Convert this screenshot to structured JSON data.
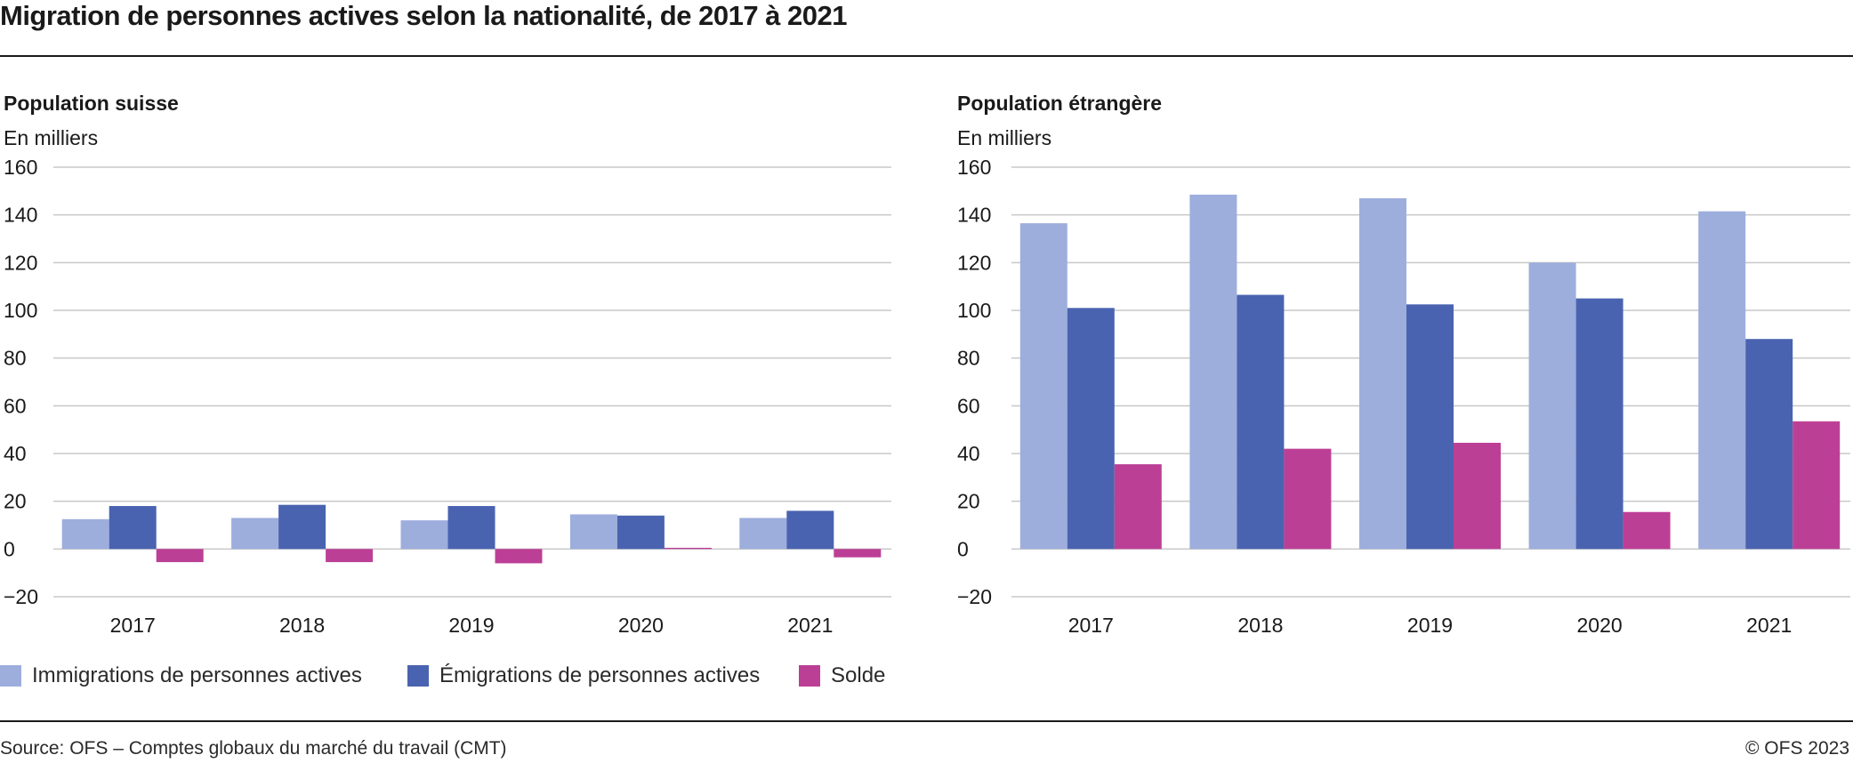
{
  "title": "Migration de personnes actives selon la nationalité, de 2017 à 2021",
  "colors": {
    "immigrations": "#9daedd",
    "emigrations": "#4a63b0",
    "solde": "#bc3f96",
    "grid": "#c8c8c8",
    "text": "#1a1a1a"
  },
  "legend": [
    {
      "key": "immigrations",
      "label": "Immigrations de personnes actives"
    },
    {
      "key": "emigrations",
      "label": "Émigrations de personnes actives"
    },
    {
      "key": "solde",
      "label": "Solde"
    }
  ],
  "chart_data": [
    {
      "type": "bar",
      "title": "Population suisse",
      "ylabel": "En milliers",
      "categories": [
        "2017",
        "2018",
        "2019",
        "2020",
        "2021"
      ],
      "ylim": [
        -20,
        160
      ],
      "yticks": [
        160,
        140,
        120,
        100,
        80,
        60,
        40,
        20,
        0,
        -20
      ],
      "grid": true,
      "series": [
        {
          "name": "Immigrations de personnes actives",
          "color": "#9daedd",
          "values": [
            12.5,
            13,
            12,
            14.5,
            13
          ]
        },
        {
          "name": "Émigrations de personnes actives",
          "color": "#4a63b0",
          "values": [
            18,
            18.5,
            18,
            14,
            16
          ]
        },
        {
          "name": "Solde",
          "color": "#bc3f96",
          "values": [
            -5.5,
            -5.5,
            -6,
            0.5,
            -3.5
          ]
        }
      ]
    },
    {
      "type": "bar",
      "title": "Population étrangère",
      "ylabel": "En milliers",
      "categories": [
        "2017",
        "2018",
        "2019",
        "2020",
        "2021"
      ],
      "ylim": [
        -20,
        160
      ],
      "yticks": [
        160,
        140,
        120,
        100,
        80,
        60,
        40,
        20,
        0,
        -20
      ],
      "grid": true,
      "series": [
        {
          "name": "Immigrations de personnes actives",
          "color": "#9daedd",
          "values": [
            136.5,
            148.5,
            147,
            120,
            141.5
          ]
        },
        {
          "name": "Émigrations de personnes actives",
          "color": "#4a63b0",
          "values": [
            101,
            106.5,
            102.5,
            105,
            88
          ]
        },
        {
          "name": "Solde",
          "color": "#bc3f96",
          "values": [
            35.5,
            42,
            44.5,
            15.5,
            53.5
          ]
        }
      ]
    }
  ],
  "footer": {
    "source": "Source: OFS – Comptes globaux du marché du travail (CMT)",
    "copyright": "© OFS 2023"
  }
}
